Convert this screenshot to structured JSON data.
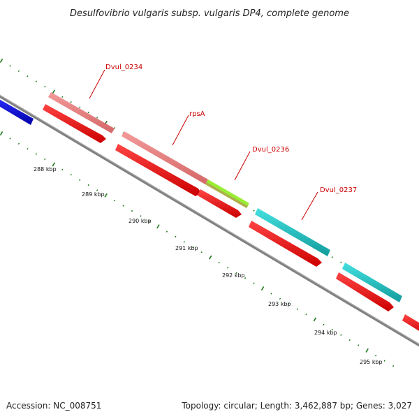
{
  "title": "Desulfovibrio vulgaris subsp. vulgaris DP4, complete genome",
  "footer": {
    "accession": "Accession: NC_008751",
    "summary": "Topology: circular; Length: 3,462,887 bp; Genes: 3,027"
  },
  "colors": {
    "backbone": "#808080",
    "gc_ticks": "#1a7a1a",
    "forward_red": "#ff1a1a",
    "cds_pink": "#f08080",
    "rrna_green": "#99ee33",
    "cds_cyan": "#22cccc",
    "other_blue": "#1010dd",
    "label_red": "#cc0000"
  },
  "gene_labels": [
    "Dvul_0234",
    "rpsA",
    "Dvul_0236",
    "Dvul_0237"
  ],
  "scale_labels": [
    "288 kbp",
    "289 kbp",
    "290 kbp",
    "291 kbp",
    "292 kbp",
    "293 kbp",
    "294 kbp",
    "295 kbp"
  ]
}
